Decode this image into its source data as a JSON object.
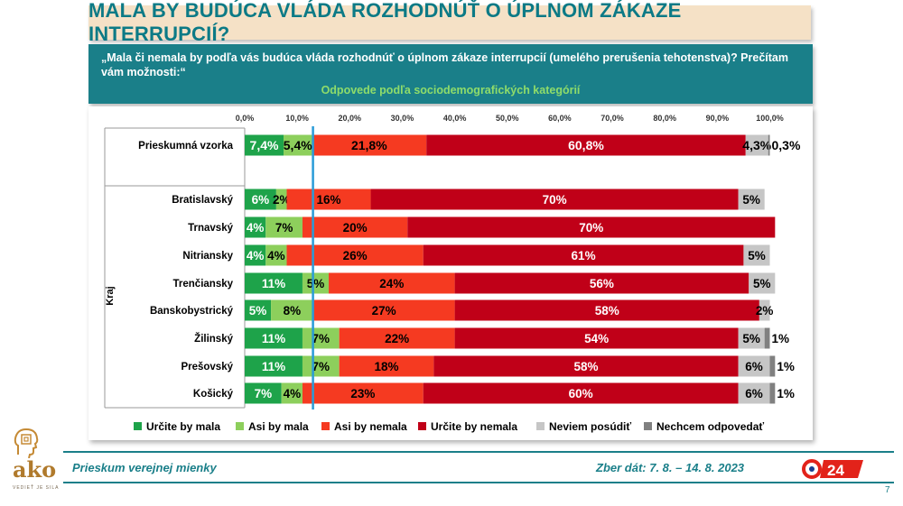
{
  "header": {
    "title": "MALA BY BUDÚCA VLÁDA ROZHODNÚŤ O ÚPLNOM ZÁKAZE INTERRUPCIÍ?",
    "question": "„Mala či nemala by podľa vás budúca vláda rozhodnúť o úplnom zákaze interrupcií (umelého prerušenia tehotenstva)? Prečítam vám možnosti:“",
    "subtitle": "Odpovede podľa sociodemografických kategórií"
  },
  "chart_data": {
    "type": "bar",
    "orientation": "horizontal",
    "stacked": true,
    "xlim": [
      0,
      100
    ],
    "x_ticks": [
      "0,0%",
      "10,0%",
      "20,0%",
      "30,0%",
      "40,0%",
      "50,0%",
      "60,0%",
      "70,0%",
      "80,0%",
      "90,0%",
      "100,0%"
    ],
    "reference_line_value": 13,
    "group_label": "Kraj",
    "colors": [
      "#1ea34a",
      "#8dcf5c",
      "#f53a21",
      "#c00018",
      "#c6c6c6",
      "#808080"
    ],
    "series_names": [
      "Určite by mala",
      "Asi by mala",
      "Asi by nemala",
      "Určite by nemala",
      "Neviem posúdiť",
      "Nechcem odpovedať"
    ],
    "rows": [
      {
        "label": "Prieskumná vzorka",
        "values": [
          7.4,
          5.4,
          21.8,
          60.8,
          4.3,
          0.3
        ],
        "labels": [
          "7,4%",
          "5,4%",
          "21,8%",
          "60,8%",
          "4,3%",
          "0,3%"
        ]
      },
      {
        "label": "Bratislavský",
        "values": [
          6,
          2,
          16,
          70,
          5,
          0
        ],
        "labels": [
          "6%",
          "2%",
          "16%",
          "70%",
          "5%",
          ""
        ]
      },
      {
        "label": "Trnavský",
        "values": [
          4,
          7,
          20,
          70,
          0,
          0
        ],
        "labels": [
          "4%",
          "7%",
          "20%",
          "70%",
          "",
          ""
        ]
      },
      {
        "label": "Nitriansky",
        "values": [
          4,
          4,
          26,
          61,
          5,
          0
        ],
        "labels": [
          "4%",
          "4%",
          "26%",
          "61%",
          "5%",
          ""
        ]
      },
      {
        "label": "Trenčiansky",
        "values": [
          11,
          5,
          24,
          56,
          5,
          0
        ],
        "labels": [
          "11%",
          "5%",
          "24%",
          "56%",
          "5%",
          ""
        ]
      },
      {
        "label": "Banskobystrický",
        "values": [
          5,
          8,
          27,
          58,
          2,
          0
        ],
        "labels": [
          "5%",
          "8%",
          "27%",
          "58%",
          "2%",
          ""
        ]
      },
      {
        "label": "Žilinský",
        "values": [
          11,
          7,
          22,
          54,
          5,
          1
        ],
        "labels": [
          "11%",
          "7%",
          "22%",
          "54%",
          "5%",
          "1%"
        ]
      },
      {
        "label": "Prešovský",
        "values": [
          11,
          7,
          18,
          58,
          6,
          1
        ],
        "labels": [
          "11%",
          "7%",
          "18%",
          "58%",
          "6%",
          "1%"
        ]
      },
      {
        "label": "Košický",
        "values": [
          7,
          4,
          23,
          60,
          6,
          1
        ],
        "labels": [
          "7%",
          "4%",
          "23%",
          "60%",
          "6%",
          "1%"
        ]
      }
    ]
  },
  "footer": {
    "left": "Prieskum verejnej mienky",
    "right": "Zber dát: 7. 8. – 14. 8. 2023",
    "logo": "ako",
    "logo_tagline": "VEDIEŤ JE SILA",
    "partner_logo": "24",
    "page_number": "7"
  }
}
